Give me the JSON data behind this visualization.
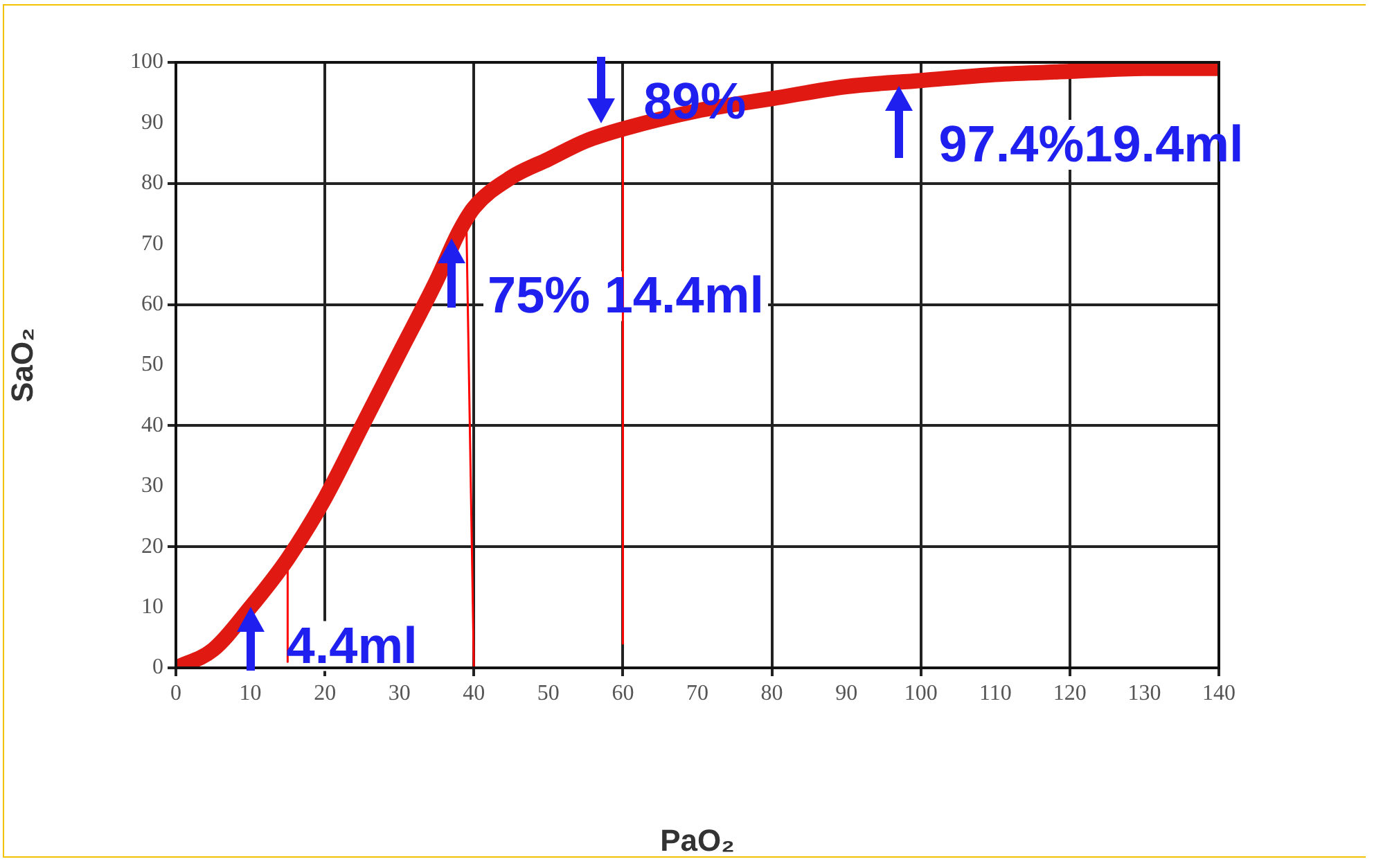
{
  "chart_data": {
    "type": "line",
    "xlabel": "PaO₂",
    "ylabel": "SaO₂",
    "xlim": [
      0,
      140
    ],
    "xticks": [
      0,
      10,
      20,
      30,
      40,
      50,
      60,
      70,
      80,
      90,
      100,
      110,
      120,
      130,
      140
    ],
    "ylim": [
      0,
      100
    ],
    "yticks": [
      0,
      10,
      20,
      30,
      40,
      50,
      60,
      70,
      80,
      90,
      100
    ],
    "grid": true,
    "legend": false,
    "marker": "none",
    "line_style": "solid",
    "series": [
      {
        "type": "line",
        "color": "#e01a12",
        "x": [
          0,
          5,
          10,
          15,
          20,
          25,
          30,
          35,
          38,
          40,
          45,
          50,
          55,
          60,
          70,
          80,
          90,
          100,
          110,
          120,
          130,
          140
        ],
        "values": [
          0,
          3,
          10,
          18,
          28,
          40,
          52,
          64,
          72,
          76,
          81,
          84,
          87,
          89,
          92,
          94,
          96,
          97,
          98,
          98.5,
          99,
          99
        ]
      },
      {
        "type": "line",
        "color": "#ff0000",
        "x": [
          15,
          15
        ],
        "values": [
          1,
          17
        ]
      },
      {
        "type": "line",
        "color": "#ff0000",
        "x": [
          40,
          39
        ],
        "values": [
          0,
          73
        ]
      },
      {
        "type": "line",
        "color": "#ff0000",
        "x": [
          60,
          60
        ],
        "values": [
          4,
          89
        ]
      }
    ],
    "annotations": [
      {
        "text": "4.4ml",
        "x": 10,
        "y": 10
      },
      {
        "text": "75% 14.4ml",
        "x": 37,
        "y": 71
      },
      {
        "text": "89%",
        "x": 57,
        "y": 90
      },
      {
        "text": "97.4%19.4ml",
        "x": 97,
        "y": 96
      }
    ]
  }
}
